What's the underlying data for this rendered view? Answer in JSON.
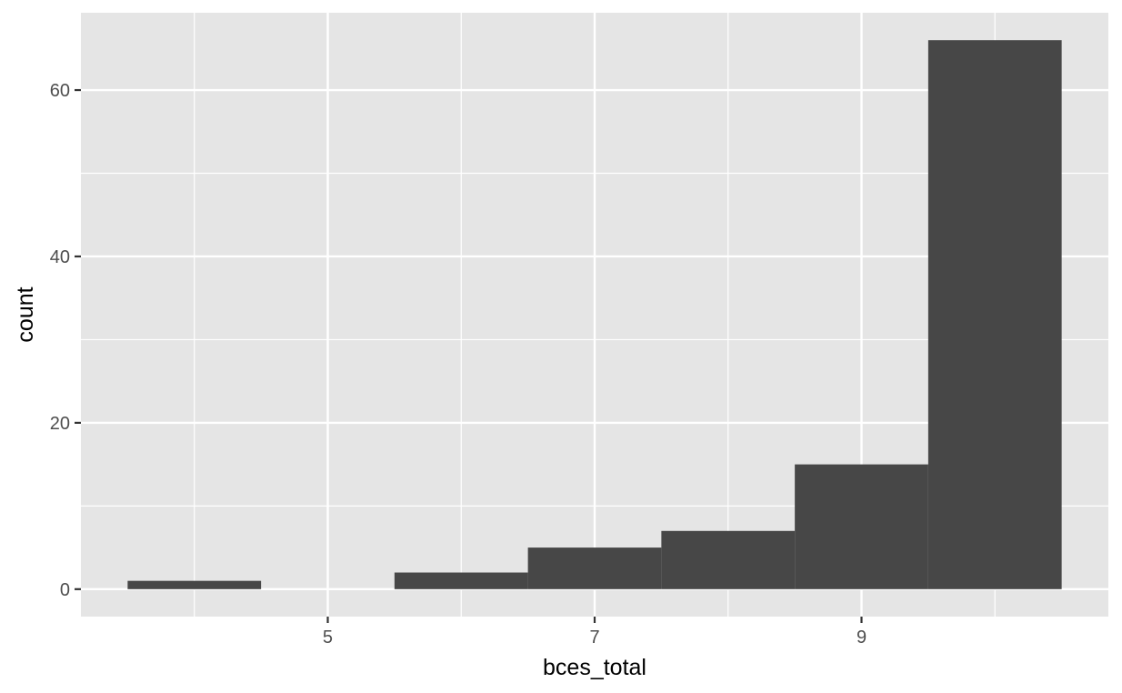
{
  "chart_data": {
    "type": "bar",
    "histogram": true,
    "xlabel": "bces_total",
    "ylabel": "count",
    "bins": [
      {
        "x0": 3.5,
        "x1": 4.5,
        "count": 1
      },
      {
        "x0": 4.5,
        "x1": 5.5,
        "count": 0
      },
      {
        "x0": 5.5,
        "x1": 6.5,
        "count": 2
      },
      {
        "x0": 6.5,
        "x1": 7.5,
        "count": 5
      },
      {
        "x0": 7.5,
        "x1": 8.5,
        "count": 7
      },
      {
        "x0": 8.5,
        "x1": 9.5,
        "count": 15
      },
      {
        "x0": 9.5,
        "x1": 10.5,
        "count": 66
      }
    ],
    "xlim": [
      3.15,
      10.85
    ],
    "ylim": [
      -3.3,
      69.3
    ],
    "x_ticks": [
      5,
      7,
      9
    ],
    "x_minor_ticks": [
      4,
      6,
      8,
      10
    ],
    "y_ticks": [
      0,
      20,
      40,
      60
    ],
    "y_minor_ticks": [
      10,
      30,
      50
    ],
    "grid": true,
    "colors": {
      "bar": "#474747",
      "panel": "#e5e5e5",
      "grid": "#ffffff"
    }
  }
}
